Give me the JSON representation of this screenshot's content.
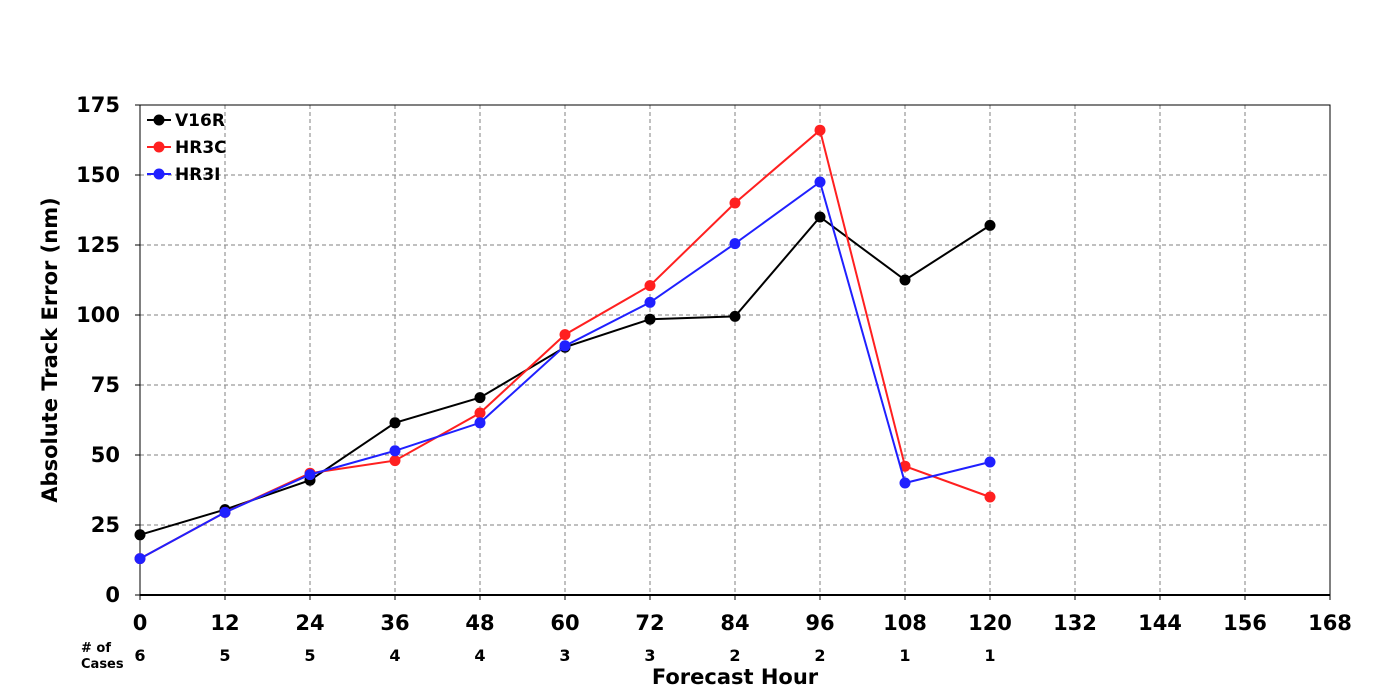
{
  "chart_data": {
    "type": "line",
    "title": "",
    "xlabel": "Forecast Hour",
    "ylabel": "Absolute Track Error (nm)",
    "xlim": [
      0,
      168
    ],
    "ylim": [
      0,
      175
    ],
    "xticks": [
      0,
      12,
      24,
      36,
      48,
      60,
      72,
      84,
      96,
      108,
      120,
      132,
      144,
      156,
      168
    ],
    "yticks": [
      0,
      25,
      50,
      75,
      100,
      125,
      150,
      175
    ],
    "grid": true,
    "legend_position": "top-left",
    "x": [
      0,
      12,
      24,
      36,
      48,
      60,
      72,
      84,
      96,
      108,
      120
    ],
    "series": [
      {
        "name": "V16R",
        "color": "#000000",
        "values": [
          21.5,
          30.5,
          41,
          61.5,
          70.5,
          88.5,
          98.5,
          99.5,
          135,
          112.5,
          132
        ]
      },
      {
        "name": "HR3C",
        "color": "#ff2020",
        "values": [
          13,
          29.5,
          43.5,
          48,
          65,
          93,
          110.5,
          140,
          166,
          46,
          35
        ]
      },
      {
        "name": "HR3I",
        "color": "#2020ff",
        "values": [
          13,
          29.5,
          43,
          51.5,
          61.5,
          89,
          104.5,
          125.5,
          147.5,
          40,
          47.5
        ]
      }
    ],
    "cases_label": "# of\nCases",
    "cases_label_lines": [
      "# of",
      "Cases"
    ],
    "cases": [
      6,
      5,
      5,
      4,
      4,
      3,
      3,
      2,
      2,
      1,
      1
    ]
  }
}
